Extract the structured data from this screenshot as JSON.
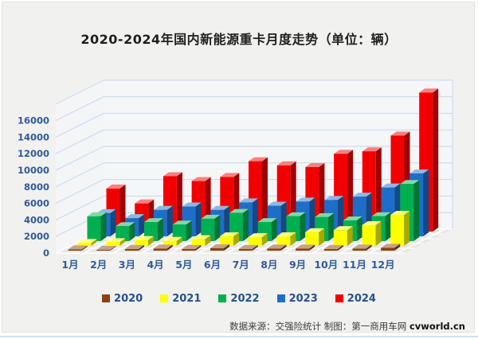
{
  "title": "2020-2024年国内新能源重卡月度走势（单位：辆）",
  "footer": {
    "source": "数据来源：交强险统计 制图：第一商用车网",
    "site": "cvworld.cn"
  },
  "colors": {
    "accent_text": "#2f5b98",
    "title_text": "#1f1f1f",
    "grid": "#c5d7ee",
    "card_bg": "#f1f1ef",
    "floor": "#e7e7e5",
    "wall": "#f4f5f7",
    "bottom_line": "#cfe2f3"
  },
  "chart_data": {
    "type": "bar",
    "projection": "3d-column",
    "title": "2020-2024年国内新能源重卡月度走势（单位：辆）",
    "xlabel": "",
    "ylabel": "",
    "unit": "辆",
    "ylim": [
      0,
      18000
    ],
    "yticks": [
      0,
      2000,
      4000,
      6000,
      8000,
      10000,
      12000,
      14000,
      16000
    ],
    "grid": true,
    "legend_position": "bottom",
    "categories": [
      "1月",
      "2月",
      "3月",
      "4月",
      "5月",
      "6月",
      "7月",
      "8月",
      "9月",
      "10月",
      "11月",
      "12月"
    ],
    "series": [
      {
        "name": "2020",
        "color": "#8a4413",
        "values": [
          150,
          100,
          200,
          250,
          200,
          300,
          200,
          250,
          250,
          200,
          250,
          350
        ]
      },
      {
        "name": "2021",
        "color": "#ffff00",
        "values": [
          350,
          450,
          700,
          600,
          800,
          1150,
          1050,
          1150,
          1650,
          1900,
          2500,
          3750
        ]
      },
      {
        "name": "2022",
        "color": "#00b050",
        "values": [
          3000,
          1800,
          2300,
          2000,
          2700,
          3400,
          2300,
          3000,
          2900,
          2500,
          3000,
          6900
        ]
      },
      {
        "name": "2023",
        "color": "#1e6ec8",
        "values": [
          2800,
          2200,
          3200,
          3600,
          3200,
          4100,
          3700,
          4200,
          4400,
          4800,
          5900,
          7600
        ]
      },
      {
        "name": "2024",
        "color": "#f10000",
        "values": [
          5200,
          3400,
          6700,
          6100,
          6600,
          8500,
          8000,
          7800,
          9400,
          9700,
          11600,
          16800
        ]
      }
    ]
  }
}
